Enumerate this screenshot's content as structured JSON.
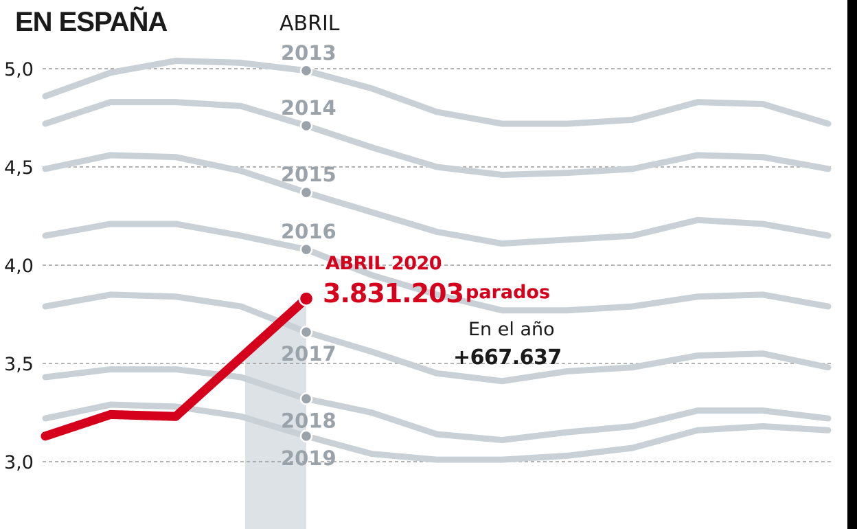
{
  "chart_data": {
    "type": "line",
    "title": "EN ESPAÑA",
    "highlight_month_label": "ABRIL",
    "ylabel": "",
    "xlabel": "",
    "ylim": [
      3.0,
      5.0
    ],
    "yticks": [
      {
        "value": 5.0,
        "label": "5,0"
      },
      {
        "value": 4.5,
        "label": "4,5"
      },
      {
        "value": 4.0,
        "label": "4,0"
      },
      {
        "value": 3.5,
        "label": "3,5"
      },
      {
        "value": 3.0,
        "label": "3,0"
      }
    ],
    "grid": true,
    "x_count": 13,
    "highlight_index": 4,
    "series": [
      {
        "name": "2013",
        "values": [
          4.86,
          4.98,
          5.04,
          5.03,
          4.99,
          4.9,
          4.78,
          4.72,
          4.72,
          4.74,
          4.83,
          4.82,
          4.72
        ]
      },
      {
        "name": "2014",
        "values": [
          4.72,
          4.83,
          4.83,
          4.81,
          4.71,
          4.6,
          4.5,
          4.46,
          4.47,
          4.49,
          4.56,
          4.55,
          4.49
        ]
      },
      {
        "name": "2015",
        "values": [
          4.49,
          4.56,
          4.55,
          4.48,
          4.37,
          4.27,
          4.17,
          4.11,
          4.13,
          4.15,
          4.23,
          4.21,
          4.15
        ]
      },
      {
        "name": "2016",
        "values": [
          4.15,
          4.21,
          4.21,
          4.15,
          4.08,
          3.95,
          3.85,
          3.77,
          3.77,
          3.79,
          3.84,
          3.85,
          3.79
        ]
      },
      {
        "name": "2017",
        "values": [
          3.79,
          3.85,
          3.84,
          3.79,
          3.66,
          3.56,
          3.45,
          3.41,
          3.46,
          3.48,
          3.54,
          3.55,
          3.48
        ]
      },
      {
        "name": "2018",
        "values": [
          3.43,
          3.47,
          3.47,
          3.43,
          3.32,
          3.25,
          3.14,
          3.11,
          3.15,
          3.18,
          3.26,
          3.26,
          3.22
        ]
      },
      {
        "name": "2019",
        "values": [
          3.22,
          3.29,
          3.28,
          3.23,
          3.13,
          3.04,
          3.01,
          3.01,
          3.03,
          3.07,
          3.16,
          3.18,
          3.16
        ]
      }
    ],
    "current_series": {
      "name": "2020",
      "values": [
        3.13,
        3.24,
        3.23,
        null,
        3.83
      ]
    },
    "annotation": {
      "label": "ABRIL 2020",
      "value": "3.831.203",
      "unit": "parados",
      "change_label": "En el año",
      "change_value": "+667.637"
    },
    "colors": {
      "current": "#d5001c",
      "past": "#c9d1d6",
      "past_label": "#9aa3aa",
      "highlight_band": "#dde2e6"
    }
  }
}
